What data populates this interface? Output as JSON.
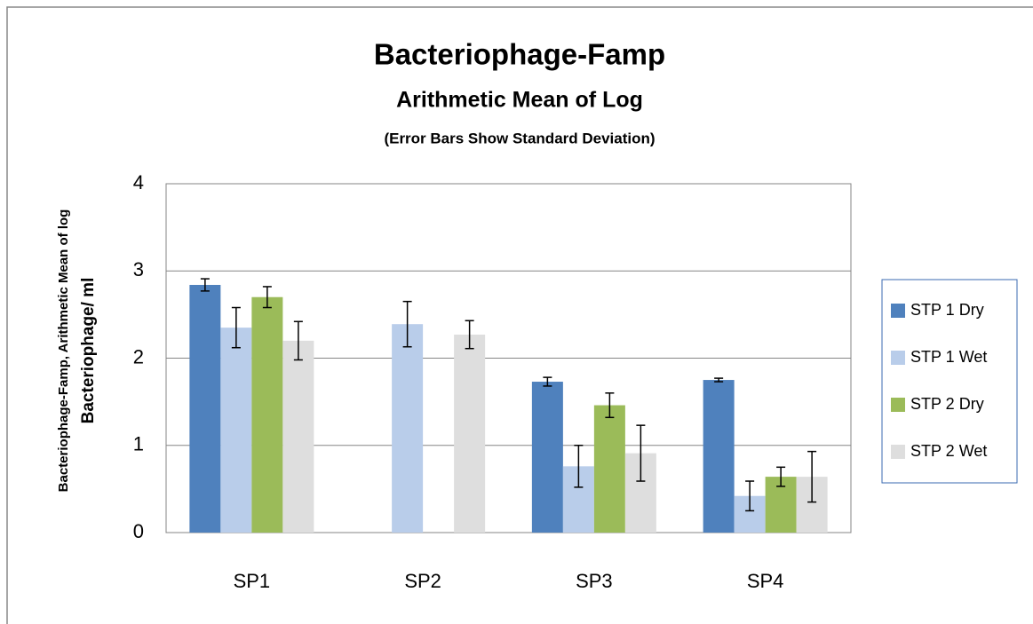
{
  "chart_data": {
    "type": "bar",
    "title": "Bacteriophage-Famp",
    "subtitle": "Arithmetic Mean of Log",
    "note": "(Error Bars Show Standard Deviation)",
    "ylabel": [
      "Bacteriophage-Famp, Arithmetic Mean of log",
      "Bacteriophage/ ml"
    ],
    "categories": [
      "SP1",
      "SP2",
      "SP3",
      "SP4"
    ],
    "series": [
      {
        "name": "STP 1 Dry",
        "color": "#4f81bd",
        "values": [
          2.84,
          null,
          1.73,
          1.75
        ],
        "errors": [
          0.07,
          null,
          0.05,
          0.02
        ]
      },
      {
        "name": "STP 1 Wet",
        "color": "#b9cdea",
        "values": [
          2.35,
          2.39,
          0.76,
          0.42
        ],
        "errors": [
          0.23,
          0.26,
          0.24,
          0.17
        ]
      },
      {
        "name": "STP 2 Dry",
        "color": "#9bbb59",
        "values": [
          2.7,
          null,
          1.46,
          0.64
        ],
        "errors": [
          0.12,
          null,
          0.14,
          0.11
        ]
      },
      {
        "name": "STP 2 Wet",
        "color": "#dedede",
        "values": [
          2.2,
          2.27,
          0.91,
          0.64
        ],
        "errors": [
          0.22,
          0.16,
          0.32,
          0.29
        ]
      }
    ],
    "ylim": [
      0,
      4
    ],
    "yticks": [
      0,
      1,
      2,
      3,
      4
    ],
    "grid": true,
    "legend": "right"
  }
}
